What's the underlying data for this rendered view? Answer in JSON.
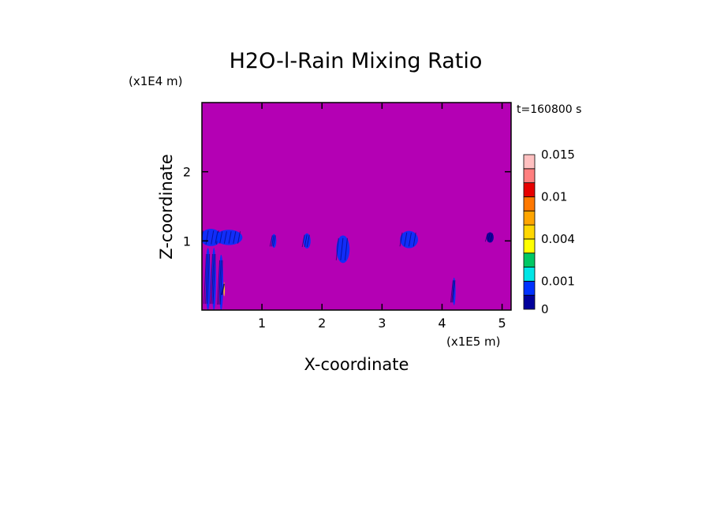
{
  "chart_data": {
    "type": "heatmap",
    "title": "H2O-l-Rain Mixing Ratio",
    "xlabel": "X-coordinate",
    "ylabel": "Z-coordinate",
    "x_unit": "(x1E5 m)",
    "y_unit": "(x1E4 m)",
    "time_label": "t=160800 s",
    "xlim": [
      0,
      5.15
    ],
    "ylim": [
      0,
      3.0
    ],
    "x_ticks": [
      {
        "value": 1,
        "label": "1"
      },
      {
        "value": 2,
        "label": "2"
      },
      {
        "value": 3,
        "label": "3"
      },
      {
        "value": 4,
        "label": "4"
      },
      {
        "value": 5,
        "label": "5"
      }
    ],
    "y_ticks": [
      {
        "value": 1,
        "label": "1"
      },
      {
        "value": 2,
        "label": "2"
      }
    ],
    "background_value": 0,
    "background_color": "#b400b4",
    "colorbar": {
      "levels": [
        0,
        0.0005,
        0.001,
        0.002,
        0.003,
        0.004,
        0.006,
        0.008,
        0.01,
        0.012,
        0.014,
        0.015
      ],
      "colors": [
        "#00009c",
        "#0032ff",
        "#00e6e6",
        "#00c864",
        "#ffff00",
        "#ffd700",
        "#ffa500",
        "#ff7800",
        "#e60000",
        "#ff7f7f",
        "#ffc0c0"
      ],
      "labels": [
        {
          "value": 0,
          "text": "0"
        },
        {
          "value": 0.001,
          "text": "0.001"
        },
        {
          "value": 0.004,
          "text": "0.004"
        },
        {
          "value": 0.01,
          "text": "0.01"
        },
        {
          "value": 0.015,
          "text": "0.015"
        }
      ]
    },
    "rain_features": [
      {
        "x": 0.15,
        "z": 1.05,
        "width": 0.35,
        "height": 0.25,
        "value": 0.0006
      },
      {
        "x": 0.45,
        "z": 1.05,
        "width": 0.45,
        "height": 0.22,
        "value": 0.0006
      },
      {
        "x": 0.1,
        "z": 0.45,
        "width": 0.08,
        "height": 0.9,
        "value": 0.0007
      },
      {
        "x": 0.2,
        "z": 0.45,
        "width": 0.07,
        "height": 0.9,
        "value": 0.0007
      },
      {
        "x": 0.32,
        "z": 0.4,
        "width": 0.07,
        "height": 0.8,
        "value": 0.0007
      },
      {
        "x": 0.37,
        "z": 0.3,
        "width": 0.02,
        "height": 0.2,
        "value": 0.003
      },
      {
        "x": 1.2,
        "z": 1.0,
        "width": 0.08,
        "height": 0.2,
        "value": 0.0005
      },
      {
        "x": 1.75,
        "z": 1.0,
        "width": 0.12,
        "height": 0.22,
        "value": 0.0005
      },
      {
        "x": 2.35,
        "z": 0.88,
        "width": 0.22,
        "height": 0.4,
        "value": 0.0005
      },
      {
        "x": 3.45,
        "z": 1.02,
        "width": 0.3,
        "height": 0.25,
        "value": 0.0005
      },
      {
        "x": 4.2,
        "z": 0.27,
        "width": 0.05,
        "height": 0.4,
        "value": 0.0006
      },
      {
        "x": 4.8,
        "z": 1.05,
        "width": 0.12,
        "height": 0.15,
        "value": 0.0004
      }
    ]
  }
}
